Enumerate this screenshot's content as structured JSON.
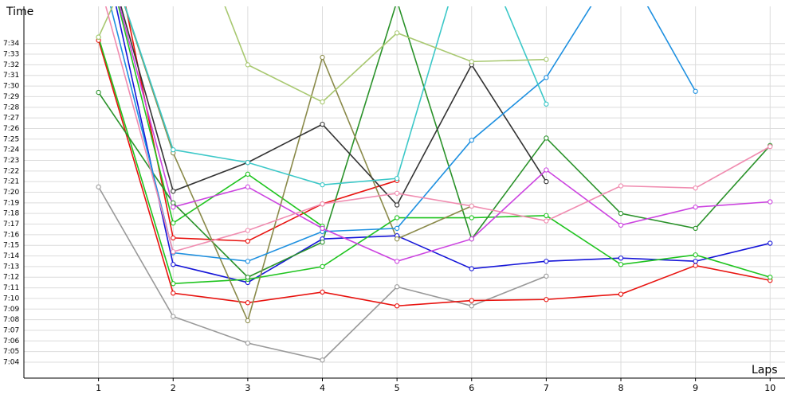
{
  "chart_data": {
    "type": "line",
    "xlabel": "Laps",
    "ylabel": "Time",
    "x": [
      1,
      2,
      3,
      4,
      5,
      6,
      7,
      8,
      9,
      10
    ],
    "xlim": [
      0,
      10.2
    ],
    "xticks": [
      1,
      2,
      3,
      4,
      5,
      6,
      7,
      8,
      9,
      10
    ],
    "ylim": [
      422.5,
      457.5
    ],
    "yticks": [
      {
        "value": 424,
        "label": "7:04"
      },
      {
        "value": 425,
        "label": "7:05"
      },
      {
        "value": 426,
        "label": "7:06"
      },
      {
        "value": 427,
        "label": "7:07"
      },
      {
        "value": 428,
        "label": "7:08"
      },
      {
        "value": 429,
        "label": "7:09"
      },
      {
        "value": 430,
        "label": "7:10"
      },
      {
        "value": 431,
        "label": "7:11"
      },
      {
        "value": 432,
        "label": "7:12"
      },
      {
        "value": 433,
        "label": "7:13"
      },
      {
        "value": 434,
        "label": "7:14"
      },
      {
        "value": 435,
        "label": "7:15"
      },
      {
        "value": 436,
        "label": "7:16"
      },
      {
        "value": 437,
        "label": "7:17"
      },
      {
        "value": 438,
        "label": "7:18"
      },
      {
        "value": 439,
        "label": "7:19"
      },
      {
        "value": 440,
        "label": "7:20"
      },
      {
        "value": 441,
        "label": "7:21"
      },
      {
        "value": 442,
        "label": "7:22"
      },
      {
        "value": 443,
        "label": "7:23"
      },
      {
        "value": 444,
        "label": "7:24"
      },
      {
        "value": 445,
        "label": "7:25"
      },
      {
        "value": 446,
        "label": "7:26"
      },
      {
        "value": 447,
        "label": "7:27"
      },
      {
        "value": 448,
        "label": "7:28"
      },
      {
        "value": 449,
        "label": "7:29"
      },
      {
        "value": 450,
        "label": "7:30"
      },
      {
        "value": 451,
        "label": "7:31"
      },
      {
        "value": 452,
        "label": "7:32"
      },
      {
        "value": 453,
        "label": "7:33"
      },
      {
        "value": 454,
        "label": "7:34"
      }
    ],
    "grid": true,
    "series": [
      {
        "color": "#999999",
        "values": [
          440.5,
          428.3,
          425.8,
          424.2,
          431.1,
          429.3,
          432.1,
          null,
          null,
          null
        ]
      },
      {
        "color": "#e8130f",
        "values": [
          454.3,
          430.5,
          429.6,
          430.6,
          429.3,
          429.8,
          429.9,
          430.4,
          433.1,
          431.7
        ]
      },
      {
        "color": "#e8130f",
        "values": [
          470,
          435.7,
          435.4,
          438.9,
          441.1,
          null,
          null,
          null,
          null,
          null
        ]
      },
      {
        "color": "#1414d8",
        "values": [
          465,
          433.2,
          431.5,
          435.6,
          435.9,
          432.8,
          433.5,
          433.8,
          433.5,
          435.2
        ]
      },
      {
        "color": "#1fc41f",
        "values": [
          454.6,
          431.4,
          431.8,
          433.0,
          437.6,
          437.6,
          437.8,
          433.2,
          434.1,
          432.0
        ]
      },
      {
        "color": "#1fc41f",
        "values": [
          465,
          437.1,
          441.7,
          436.8,
          null,
          null,
          null,
          null,
          null,
          null
        ]
      },
      {
        "color": "#2a922a",
        "values": [
          449.4,
          439.0,
          432.0,
          435.3,
          458,
          435.6,
          445.1,
          438.0,
          436.6,
          444.4
        ]
      },
      {
        "color": "#8a8a4a",
        "values": [
          465,
          443.7,
          427.9,
          452.7,
          435.6,
          438.7,
          null,
          null,
          null,
          null
        ]
      },
      {
        "color": "#333333",
        "values": [
          465,
          440.1,
          442.8,
          446.4,
          438.8,
          452.0,
          441.0,
          null,
          null,
          null
        ]
      },
      {
        "color": "#1e90e0",
        "values": [
          462,
          434.3,
          433.5,
          436.3,
          436.6,
          444.9,
          450.8,
          462,
          449.5,
          null
        ]
      },
      {
        "color": "#3cc8c8",
        "values": [
          465,
          444.0,
          442.8,
          440.7,
          441.3,
          465,
          448.3,
          null,
          null,
          null
        ]
      },
      {
        "color": "#a8c870",
        "values": [
          454.6,
          470,
          452.0,
          448.5,
          455.0,
          452.3,
          452.5,
          null,
          null,
          null
        ]
      },
      {
        "color": "#cc44e0",
        "values": [
          465,
          438.6,
          440.5,
          436.6,
          433.5,
          435.6,
          442.1,
          436.9,
          438.6,
          439.1
        ]
      },
      {
        "color": "#f08cb0",
        "values": [
          460,
          434.4,
          436.4,
          438.9,
          439.9,
          438.7,
          437.3,
          440.6,
          440.4,
          444.3
        ]
      }
    ]
  }
}
